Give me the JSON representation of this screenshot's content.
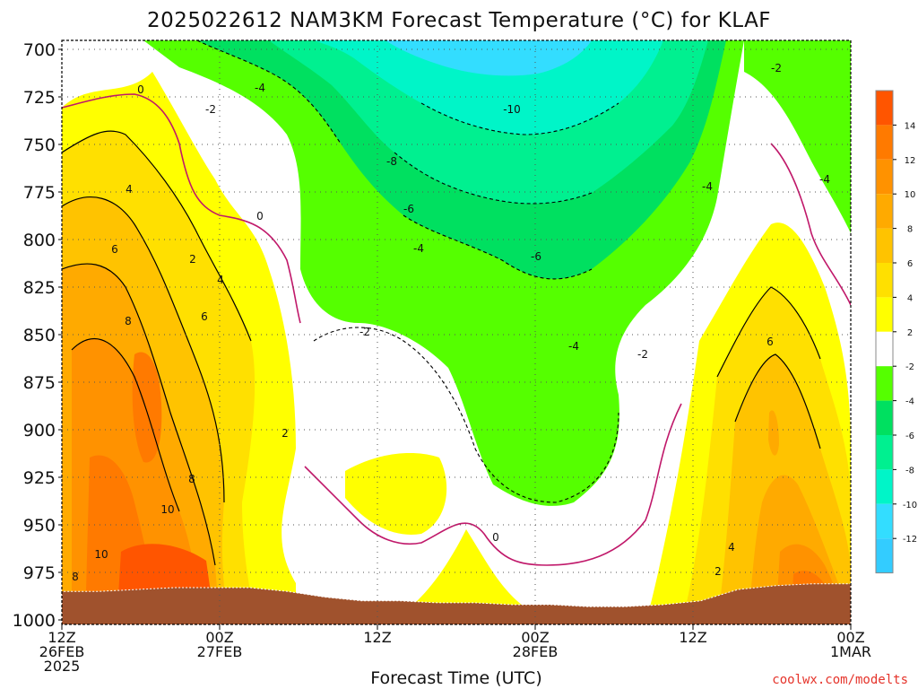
{
  "chart_data": {
    "type": "filled-contour",
    "title": "2025022612 NAM3KM Forecast Temperature (°C) for KLAF",
    "xlabel": "Forecast Time (UTC)",
    "ylabel": "",
    "y_axis": {
      "ticks": [
        700,
        725,
        750,
        775,
        800,
        825,
        850,
        875,
        900,
        925,
        950,
        975,
        1000
      ],
      "range": [
        700,
        1000
      ],
      "inverted": true,
      "grid": true
    },
    "x_axis": {
      "range_hours": [
        0,
        60
      ],
      "ticks": [
        {
          "hour": 0,
          "line1": "12Z",
          "line2": "26FEB",
          "line3": "2025"
        },
        {
          "hour": 12,
          "line1": "00Z",
          "line2": "27FEB",
          "line3": ""
        },
        {
          "hour": 24,
          "line1": "12Z",
          "line2": "",
          "line3": ""
        },
        {
          "hour": 36,
          "line1": "00Z",
          "line2": "28FEB",
          "line3": ""
        },
        {
          "hour": 48,
          "line1": "12Z",
          "line2": "",
          "line3": ""
        },
        {
          "hour": 60,
          "line1": "00Z",
          "line2": "1MAR",
          "line3": ""
        }
      ],
      "grid": true
    },
    "colorbar": {
      "labels": [
        "14",
        "12",
        "10",
        "8",
        "6",
        "4",
        "2",
        "-2",
        "-4",
        "-6",
        "-8",
        "-10",
        "-12"
      ],
      "colors": [
        "#ff5500",
        "#ff7a00",
        "#ff9200",
        "#ffaa00",
        "#ffc300",
        "#ffe000",
        "#ffff00",
        "#ffffff",
        "#55ff00",
        "#00e060",
        "#00f090",
        "#00f5c8",
        "#33ddff",
        "#33ccff"
      ]
    },
    "levels": [
      14,
      12,
      10,
      8,
      6,
      4,
      2,
      0,
      -2,
      -4,
      -6,
      -8,
      -10,
      -12
    ],
    "contour_labels": [
      "0",
      "-2",
      "-4",
      "-10",
      "-8",
      "-6",
      "-4",
      "-6",
      "-4",
      "-2",
      "-2",
      "-4",
      "-4",
      "-2",
      "0",
      "4",
      "6",
      "2",
      "4",
      "6",
      "8",
      "8",
      "10",
      "10",
      "8",
      "2",
      "0",
      "2",
      "4",
      "6"
    ],
    "surface_pressure_profile": [
      985,
      985,
      984,
      983,
      983,
      983,
      985,
      988,
      990,
      990,
      991,
      991,
      992,
      992,
      993,
      993,
      992,
      990,
      984,
      982,
      981,
      981
    ]
  },
  "credit": "coolwx.com/modelts",
  "colors": {
    "ground": "#a0522d",
    "zero_line": "#c0186a",
    "background": "#ffffff"
  }
}
